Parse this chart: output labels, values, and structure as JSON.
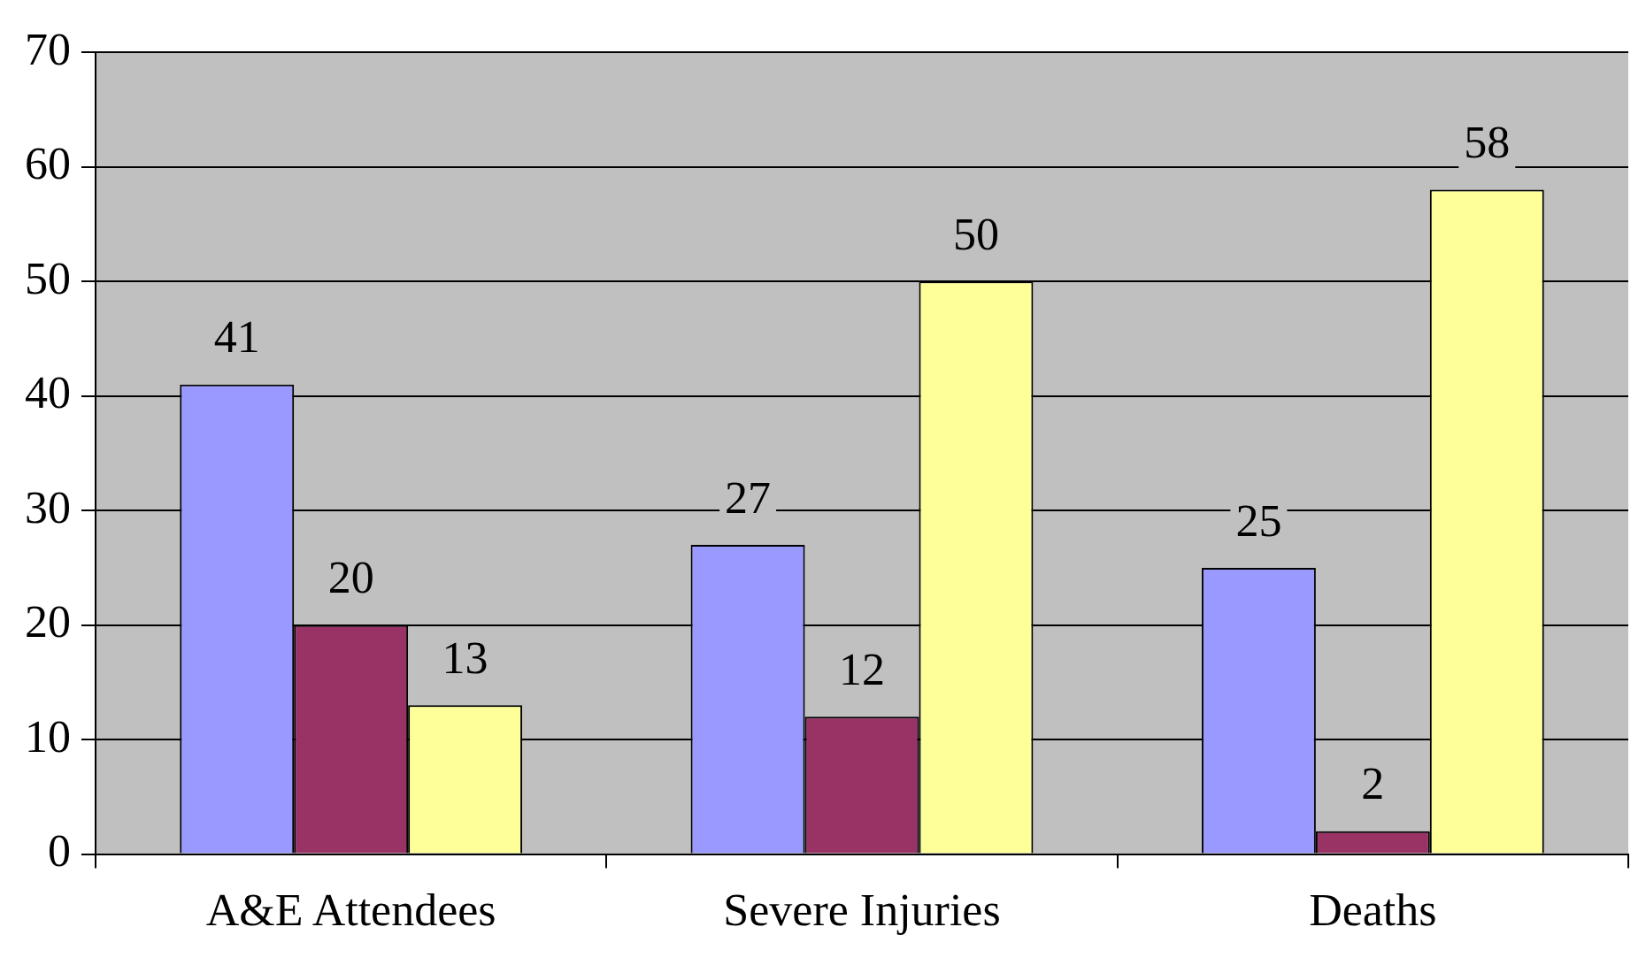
{
  "chart_data": {
    "type": "bar",
    "categories": [
      "A&E Attendees",
      "Severe Injuries",
      "Deaths"
    ],
    "series": [
      {
        "color": "#9999ff",
        "values": [
          41,
          27,
          25
        ]
      },
      {
        "color": "#993366",
        "values": [
          20,
          12,
          2
        ]
      },
      {
        "color": "#ffff99",
        "values": [
          13,
          50,
          58
        ]
      }
    ],
    "ylim": [
      0,
      70
    ],
    "yticks": [
      0,
      10,
      20,
      30,
      40,
      50,
      60,
      70
    ],
    "grid": "y",
    "legend": false,
    "data_labels": true
  }
}
